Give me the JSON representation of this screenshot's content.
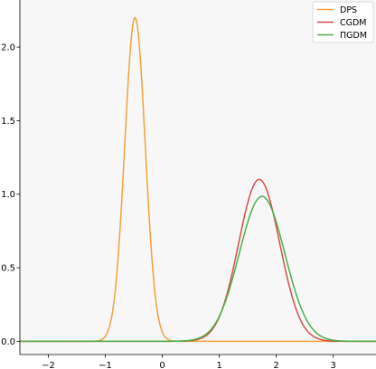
{
  "chart_data": {
    "type": "line",
    "title": "",
    "xlabel": "",
    "ylabel": "",
    "xlim": [
      -2.5,
      3.75
    ],
    "ylim": [
      -0.09,
      2.32
    ],
    "xticks": [
      -2,
      -1,
      0,
      1,
      2,
      3
    ],
    "xtick_labels": [
      "−2",
      "−1",
      "0",
      "1",
      "2",
      "3"
    ],
    "yticks": [
      0.0,
      0.5,
      1.0,
      1.5,
      2.0
    ],
    "ytick_labels": [
      "0.0",
      "0.5",
      "1.0",
      "1.5",
      "2.0"
    ],
    "grid": false,
    "background": "#f7f7f7",
    "legend": "top-right",
    "series": [
      {
        "name": "DPS",
        "color": "#f5a03c",
        "shape": "gaussian",
        "mean": -0.48,
        "peak": 2.2,
        "sd": 0.18
      },
      {
        "name": "CGDM",
        "color": "#d64d4d",
        "shape": "gaussian",
        "mean": 1.7,
        "peak": 1.1,
        "sd": 0.36
      },
      {
        "name": "ΠGDM",
        "color": "#4cb04c",
        "shape": "gaussian",
        "mean": 1.75,
        "peak": 0.985,
        "sd": 0.4
      }
    ]
  }
}
